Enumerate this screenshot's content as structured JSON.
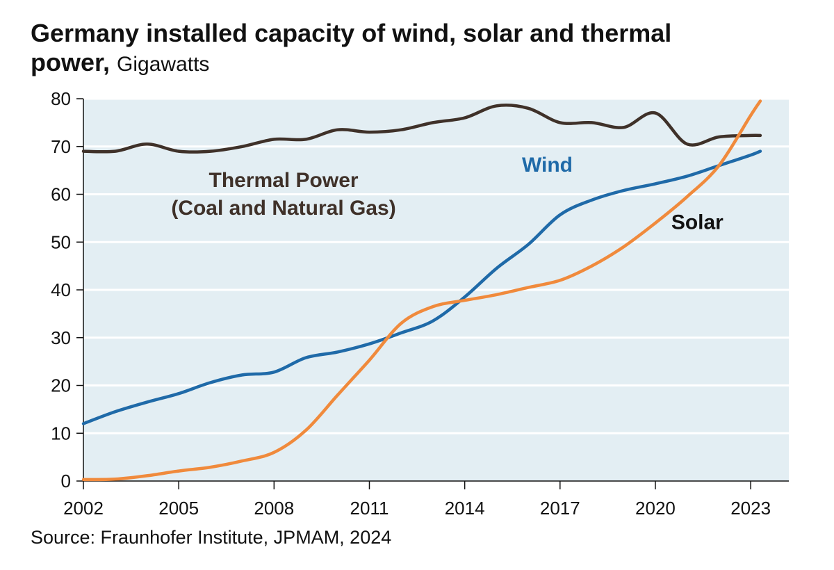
{
  "title_line1": "Germany installed capacity of wind, solar and thermal",
  "title_line2_bold": "power,",
  "title_line2_unit": "Gigawatts",
  "source": "Source: Fraunhofer Institute, JPMAM, 2024",
  "colors": {
    "plot_bg": "#e3eef3",
    "grid": "#ffffff",
    "thermal": "#3f3129",
    "wind": "#1f6aa8",
    "solar": "#f08a3c"
  },
  "chart_data": {
    "type": "line",
    "title": "Germany installed capacity of wind, solar and thermal power, Gigawatts",
    "xlabel": "",
    "ylabel": "",
    "xlim": [
      2002,
      2024.2
    ],
    "ylim": [
      0,
      80
    ],
    "x_ticks": [
      2002,
      2005,
      2008,
      2011,
      2014,
      2017,
      2020,
      2023
    ],
    "y_ticks": [
      0,
      10,
      20,
      30,
      40,
      50,
      60,
      70,
      80
    ],
    "grid": true,
    "series": [
      {
        "name": "Thermal Power (Coal and Natural Gas)",
        "label_lines": [
          "Thermal Power",
          "(Coal and Natural Gas)"
        ],
        "color": "#3f3129",
        "x": [
          2002,
          2003,
          2004,
          2005,
          2006,
          2007,
          2008,
          2009,
          2010,
          2011,
          2012,
          2013,
          2014,
          2015,
          2016,
          2017,
          2018,
          2019,
          2020,
          2021,
          2022,
          2023,
          2023.3
        ],
        "y": [
          69,
          69,
          70.5,
          69,
          69,
          70,
          71.5,
          71.5,
          73.5,
          73,
          73.5,
          75,
          76,
          78.5,
          78,
          75,
          75,
          74,
          77,
          70.5,
          72,
          72.3,
          72.3
        ]
      },
      {
        "name": "Wind",
        "label_lines": [
          "Wind"
        ],
        "color": "#1f6aa8",
        "x": [
          2002,
          2003,
          2004,
          2005,
          2006,
          2007,
          2008,
          2009,
          2010,
          2011,
          2012,
          2013,
          2014,
          2015,
          2016,
          2017,
          2018,
          2019,
          2020,
          2021,
          2022,
          2023,
          2023.3
        ],
        "y": [
          12,
          14.5,
          16.5,
          18.3,
          20.6,
          22.2,
          22.8,
          25.8,
          27,
          28.7,
          31,
          33.5,
          38.5,
          44.5,
          49.5,
          55.7,
          58.8,
          60.8,
          62.2,
          63.8,
          66,
          68.2,
          69
        ]
      },
      {
        "name": "Solar",
        "label_lines": [
          "Solar"
        ],
        "color": "#f08a3c",
        "x": [
          2002,
          2003,
          2004,
          2005,
          2006,
          2007,
          2008,
          2009,
          2010,
          2011,
          2012,
          2013,
          2014,
          2015,
          2016,
          2017,
          2018,
          2019,
          2020,
          2021,
          2022,
          2023,
          2023.3
        ],
        "y": [
          0.3,
          0.4,
          1.1,
          2.1,
          2.9,
          4.2,
          6,
          10.6,
          18,
          25.3,
          33,
          36.5,
          37.8,
          39,
          40.5,
          42,
          45,
          49,
          54,
          59.5,
          66,
          76.5,
          79.5
        ]
      }
    ]
  }
}
